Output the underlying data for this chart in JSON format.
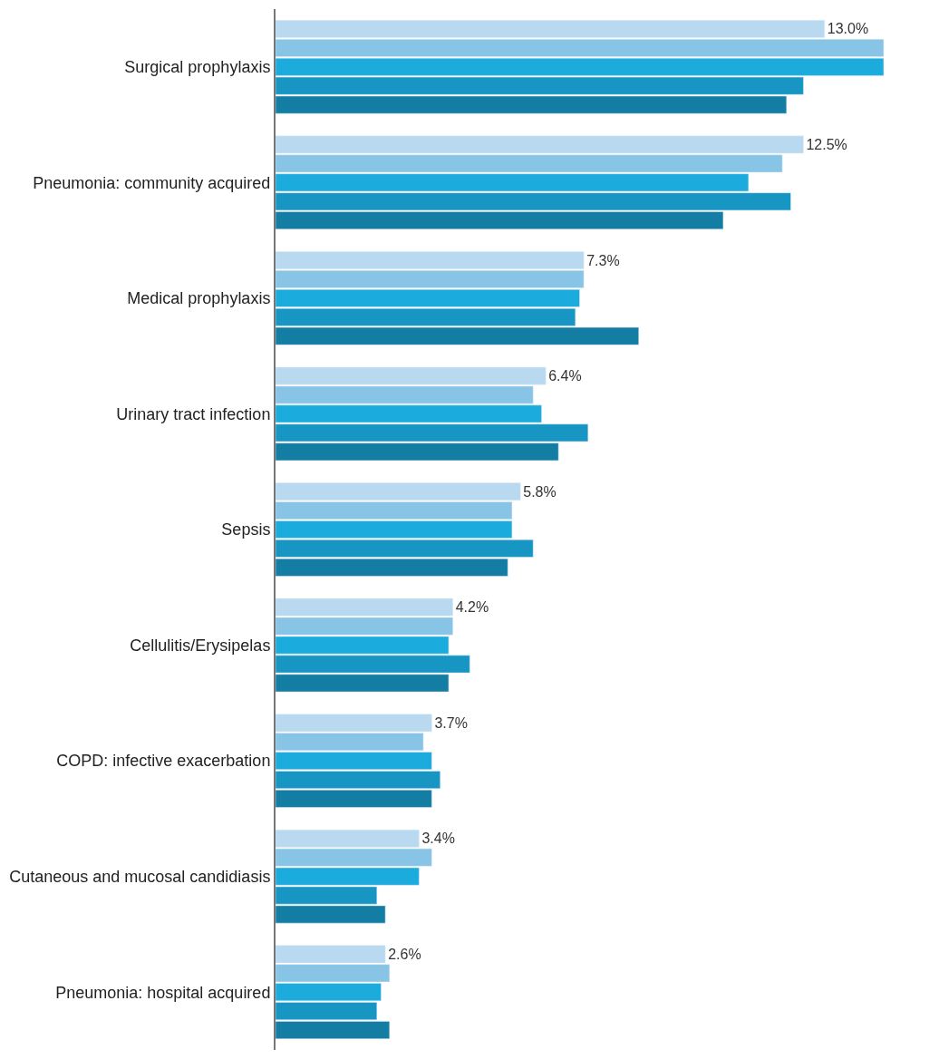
{
  "chart_data": {
    "type": "bar",
    "orientation": "horizontal",
    "categories": [
      "Surgical prophylaxis",
      "Pneumonia: community acquired",
      "Medical prophylaxis",
      "Urinary tract infection",
      "Sepsis",
      "Cellulitis/Erysipelas",
      "COPD: infective exacerbation",
      "Cutaneous and mucosal candidiasis",
      "Pneumonia: hospital acquired"
    ],
    "xlim": [
      0,
      14.4
    ],
    "tick_labels": "y",
    "series": [
      {
        "color": "#b8d9ef",
        "values": [
          13.0,
          12.5,
          7.3,
          6.4,
          5.8,
          4.2,
          3.7,
          3.4,
          2.6
        ],
        "value_labels": [
          "13.0%",
          "12.5%",
          "7.3%",
          "6.4%",
          "5.8%",
          "4.2%",
          "3.7%",
          "3.4%",
          "2.6%"
        ]
      },
      {
        "color": "#88c4e6",
        "values": [
          14.4,
          12.0,
          7.3,
          6.1,
          5.6,
          4.2,
          3.5,
          3.7,
          2.7
        ]
      },
      {
        "color": "#1babdc",
        "values": [
          14.4,
          11.2,
          7.2,
          6.3,
          5.6,
          4.1,
          3.7,
          3.4,
          2.5
        ]
      },
      {
        "color": "#1796c4",
        "values": [
          12.5,
          12.2,
          7.1,
          7.4,
          6.1,
          4.6,
          3.9,
          2.4,
          2.4
        ]
      },
      {
        "color": "#137da3",
        "values": [
          12.1,
          10.6,
          8.6,
          6.7,
          5.5,
          4.1,
          3.7,
          2.6,
          2.7
        ]
      }
    ]
  }
}
